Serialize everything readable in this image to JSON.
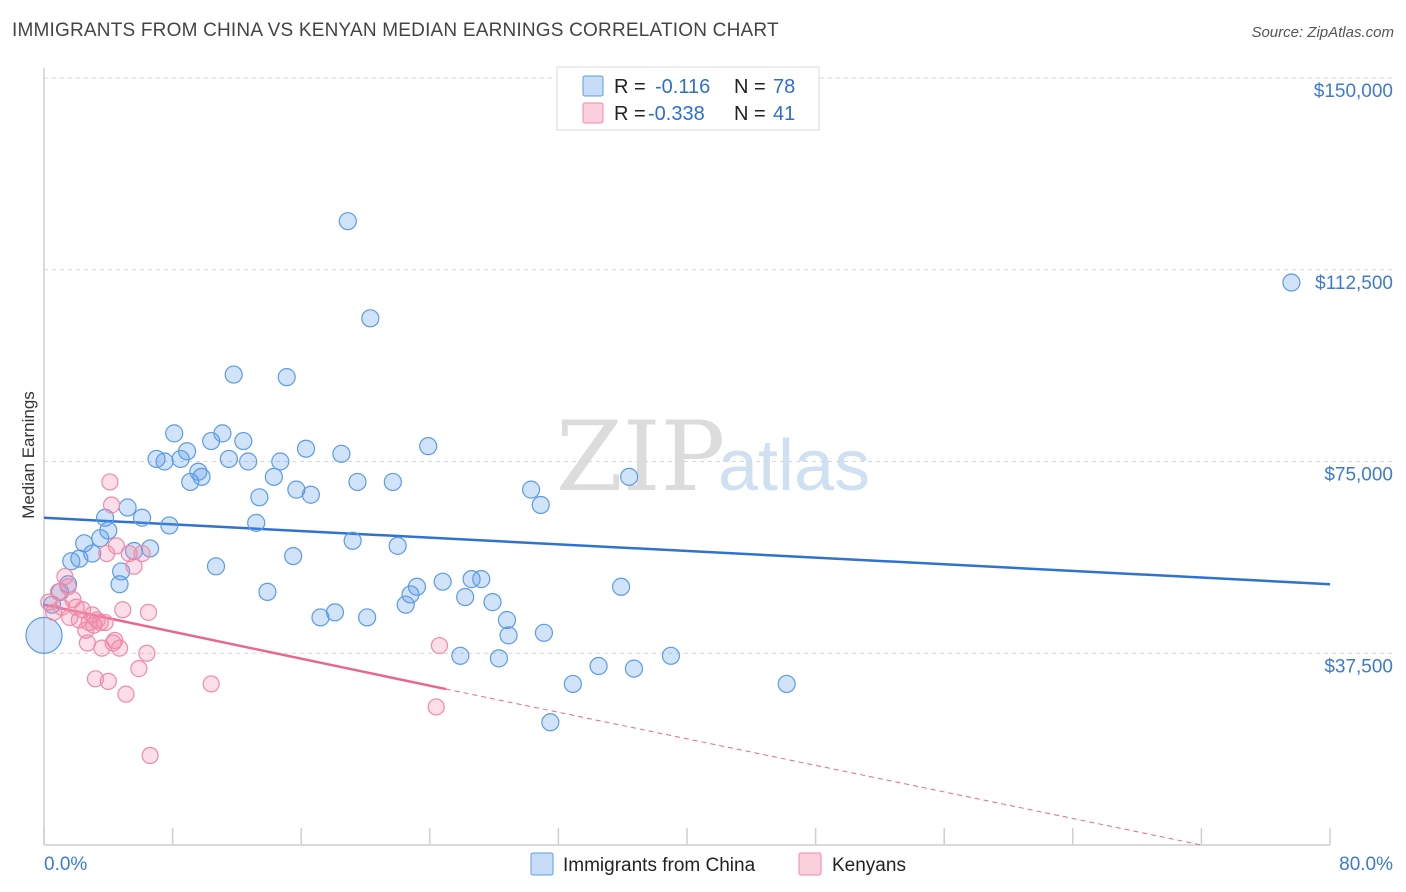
{
  "title": "IMMIGRANTS FROM CHINA VS KENYAN MEDIAN EARNINGS CORRELATION CHART",
  "source": "Source: ZipAtlas.com",
  "watermark": {
    "zip": "ZIP",
    "atlas": "atlas"
  },
  "colors": {
    "china": "#5b9be6",
    "kenya": "#f08aa8",
    "china_line": "#2f72cf",
    "kenya_line": "#e8678f",
    "axis_label": "#3d7ad0"
  },
  "legend": {
    "rows": [
      {
        "r_label": "R =",
        "r_value": "-0.116",
        "n_label": "N =",
        "n_value": "78"
      },
      {
        "r_label": "R =",
        "r_value": "-0.338",
        "n_label": "N =",
        "n_value": "41"
      }
    ]
  },
  "chart_data": {
    "type": "scatter",
    "title": "IMMIGRANTS FROM CHINA VS KENYAN MEDIAN EARNINGS CORRELATION CHART",
    "xlabel": "",
    "ylabel": "Median Earnings",
    "xlim": [
      0,
      80
    ],
    "ylim": [
      0,
      150000
    ],
    "x_tick_labels": [
      "0.0%",
      "80.0%"
    ],
    "y_ticks": [
      37500,
      75000,
      112500,
      150000
    ],
    "y_tick_labels": [
      "$37,500",
      "$75,000",
      "$112,500",
      "$150,000"
    ],
    "grid": "horizontal dashed",
    "legend_position": "top-center",
    "series": [
      {
        "name": "Immigrants from China",
        "color": "#5b9be6",
        "trend": {
          "x": [
            0,
            80
          ],
          "y": [
            64000,
            51000
          ]
        },
        "points": [
          [
            0,
            41000
          ],
          [
            0.5,
            47000
          ],
          [
            1,
            49500
          ],
          [
            1.5,
            51000
          ],
          [
            1.7,
            55500
          ],
          [
            2.2,
            56000
          ],
          [
            2.5,
            59000
          ],
          [
            3,
            57000
          ],
          [
            3.5,
            60000
          ],
          [
            3.8,
            64000
          ],
          [
            4,
            61500
          ],
          [
            4.7,
            51000
          ],
          [
            4.8,
            53500
          ],
          [
            5.2,
            66000
          ],
          [
            5.6,
            57500
          ],
          [
            6.1,
            64000
          ],
          [
            6.6,
            58000
          ],
          [
            7,
            75500
          ],
          [
            7.5,
            75000
          ],
          [
            7.8,
            62500
          ],
          [
            8.1,
            80500
          ],
          [
            8.5,
            75500
          ],
          [
            8.9,
            77000
          ],
          [
            9.1,
            71000
          ],
          [
            9.6,
            73000
          ],
          [
            9.8,
            72000
          ],
          [
            10.4,
            79000
          ],
          [
            10.7,
            54500
          ],
          [
            11.1,
            80500
          ],
          [
            11.5,
            75500
          ],
          [
            11.8,
            92000
          ],
          [
            12.4,
            79000
          ],
          [
            12.7,
            75000
          ],
          [
            13.2,
            63000
          ],
          [
            13.4,
            68000
          ],
          [
            13.9,
            49500
          ],
          [
            14.3,
            72000
          ],
          [
            14.7,
            75000
          ],
          [
            15.1,
            91500
          ],
          [
            15.5,
            56500
          ],
          [
            15.7,
            69500
          ],
          [
            16.3,
            77500
          ],
          [
            16.6,
            68500
          ],
          [
            17.2,
            44500
          ],
          [
            18.1,
            45500
          ],
          [
            18.5,
            76500
          ],
          [
            18.9,
            122000
          ],
          [
            19.2,
            59500
          ],
          [
            19.5,
            71000
          ],
          [
            20.1,
            44500
          ],
          [
            20.3,
            103000
          ],
          [
            21.7,
            71000
          ],
          [
            22,
            58500
          ],
          [
            22.5,
            47000
          ],
          [
            22.8,
            49000
          ],
          [
            23.2,
            50500
          ],
          [
            23.9,
            78000
          ],
          [
            24.8,
            51500
          ],
          [
            25.9,
            37000
          ],
          [
            26.2,
            48500
          ],
          [
            26.6,
            52000
          ],
          [
            27.2,
            52000
          ],
          [
            27.9,
            47500
          ],
          [
            28.3,
            36500
          ],
          [
            28.8,
            44000
          ],
          [
            28.9,
            41000
          ],
          [
            30.3,
            69500
          ],
          [
            30.9,
            66500
          ],
          [
            31.1,
            41500
          ],
          [
            31.5,
            24000
          ],
          [
            32.9,
            31500
          ],
          [
            34.5,
            35000
          ],
          [
            35.9,
            50500
          ],
          [
            36.4,
            72000
          ],
          [
            36.7,
            34500
          ],
          [
            39,
            37000
          ],
          [
            46.2,
            31500
          ],
          [
            77.6,
            110000
          ]
        ]
      },
      {
        "name": "Kenyans",
        "color": "#f08aa8",
        "trend": {
          "x": [
            0,
            25
          ],
          "y": [
            47000,
            30500
          ],
          "dashed_x": [
            25,
            72
          ],
          "dashed_y": [
            30500,
            0
          ]
        },
        "points": [
          [
            0.3,
            47500
          ],
          [
            0.6,
            45500
          ],
          [
            0.9,
            49500
          ],
          [
            1.1,
            46500
          ],
          [
            1.3,
            52500
          ],
          [
            1.5,
            50500
          ],
          [
            1.6,
            44500
          ],
          [
            1.8,
            48000
          ],
          [
            2,
            46500
          ],
          [
            2.2,
            44000
          ],
          [
            2.4,
            46000
          ],
          [
            2.6,
            42000
          ],
          [
            2.7,
            39500
          ],
          [
            2.8,
            43500
          ],
          [
            3,
            45000
          ],
          [
            3.1,
            43000
          ],
          [
            3.2,
            32500
          ],
          [
            3.3,
            44000
          ],
          [
            3.5,
            43500
          ],
          [
            3.6,
            38500
          ],
          [
            3.8,
            43500
          ],
          [
            3.9,
            57000
          ],
          [
            4,
            32000
          ],
          [
            4.1,
            71000
          ],
          [
            4.2,
            66500
          ],
          [
            4.3,
            39500
          ],
          [
            4.4,
            40000
          ],
          [
            4.5,
            58500
          ],
          [
            4.7,
            38500
          ],
          [
            4.9,
            46000
          ],
          [
            5.1,
            29500
          ],
          [
            5.3,
            57000
          ],
          [
            5.6,
            54500
          ],
          [
            5.9,
            34500
          ],
          [
            6.1,
            57000
          ],
          [
            6.4,
            37500
          ],
          [
            6.5,
            45500
          ],
          [
            6.6,
            17500
          ],
          [
            10.4,
            31500
          ],
          [
            24.6,
            39000
          ],
          [
            24.4,
            27000
          ]
        ]
      }
    ]
  },
  "bottom_legend": {
    "china": "Immigrants from China",
    "kenya": "Kenyans"
  }
}
